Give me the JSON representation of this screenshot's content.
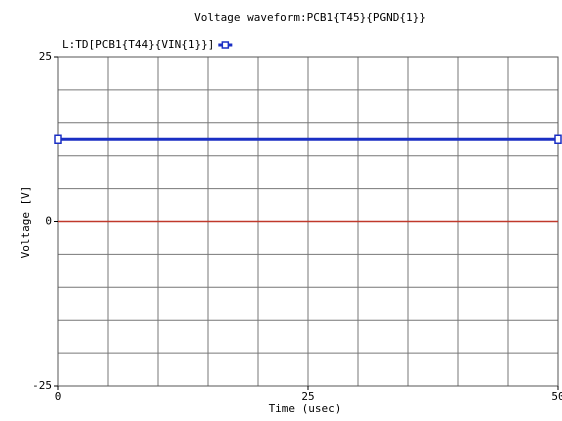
{
  "chart_data": {
    "type": "line",
    "title": "Voltage waveform:PCB1{T45}{PGND{1}}",
    "xlabel": "Time (usec)",
    "ylabel": "Voltage [V]",
    "x": [
      0,
      50
    ],
    "series": [
      {
        "name": "L:TD[PCB1{T44}{VIN{1}}]",
        "color": "#1a2fc4",
        "values": [
          12.5,
          12.5
        ]
      }
    ],
    "reference_line": {
      "value": 0,
      "color": "#c0392b"
    },
    "xlim": [
      0,
      50
    ],
    "ylim": [
      -25,
      25
    ],
    "xticks": [
      0,
      25,
      50
    ],
    "yticks": [
      -25,
      0,
      25
    ],
    "xgrid": [
      0,
      5,
      10,
      15,
      20,
      25,
      30,
      35,
      40,
      45,
      50
    ],
    "ygrid": [
      -25,
      -20,
      -15,
      -10,
      -5,
      0,
      5,
      10,
      15,
      20,
      25
    ],
    "grid": true
  }
}
